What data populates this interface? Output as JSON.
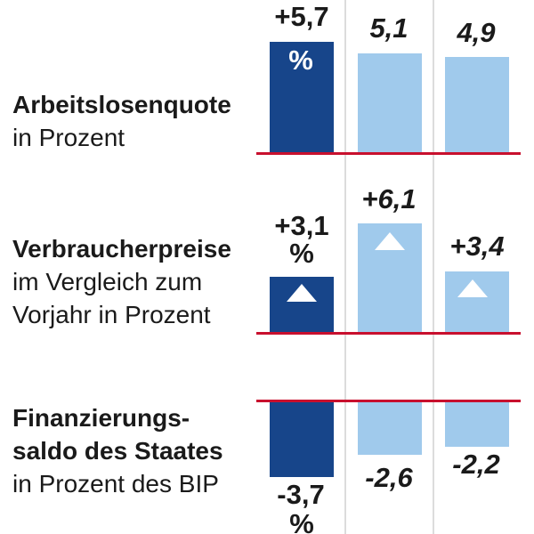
{
  "chart_data": {
    "type": "bar",
    "layout": "3 indicator rows x 3 bars; first bar of each row highlighted dark blue, bars 2-3 light blue with italic labels; red zero baseline per row; light gray vertical column separators; no axis tick labels",
    "colors": {
      "highlight_bar": "#17458a",
      "bar": "#a0caec",
      "baseline": "#c8102e",
      "separator": "#dcdcdc",
      "text": "#1a1a1a",
      "bar_text": "#ffffff"
    },
    "rows": [
      {
        "bold_lines": [
          "Arbeitslosenquote"
        ],
        "plain_lines": [
          "in Prozent"
        ],
        "values": [
          5.7,
          5.1,
          4.9
        ],
        "display": [
          "+5,7",
          "5,1",
          "4,9"
        ],
        "unit": "%",
        "unit_position": "inside-first-bar",
        "direction": "up"
      },
      {
        "bold_lines": [
          "Verbraucherpreise"
        ],
        "plain_lines": [
          "im Vergleich zum",
          "Vorjahr in Prozent"
        ],
        "values": [
          3.1,
          6.1,
          3.4
        ],
        "display": [
          "+3,1",
          "+6,1",
          "+3,4"
        ],
        "unit": "%",
        "unit_position": "below-first-value",
        "direction": "up",
        "arrow_icon": "triangle-up"
      },
      {
        "bold_lines": [
          "Finanzierungs-",
          "saldo des Staates"
        ],
        "plain_lines": [
          "in Prozent des BIP"
        ],
        "values": [
          -3.7,
          -2.6,
          -2.2
        ],
        "display": [
          "-3,7",
          "-2,6",
          "-2,2"
        ],
        "unit": "%",
        "unit_position": "below-first-value",
        "direction": "down"
      }
    ]
  }
}
